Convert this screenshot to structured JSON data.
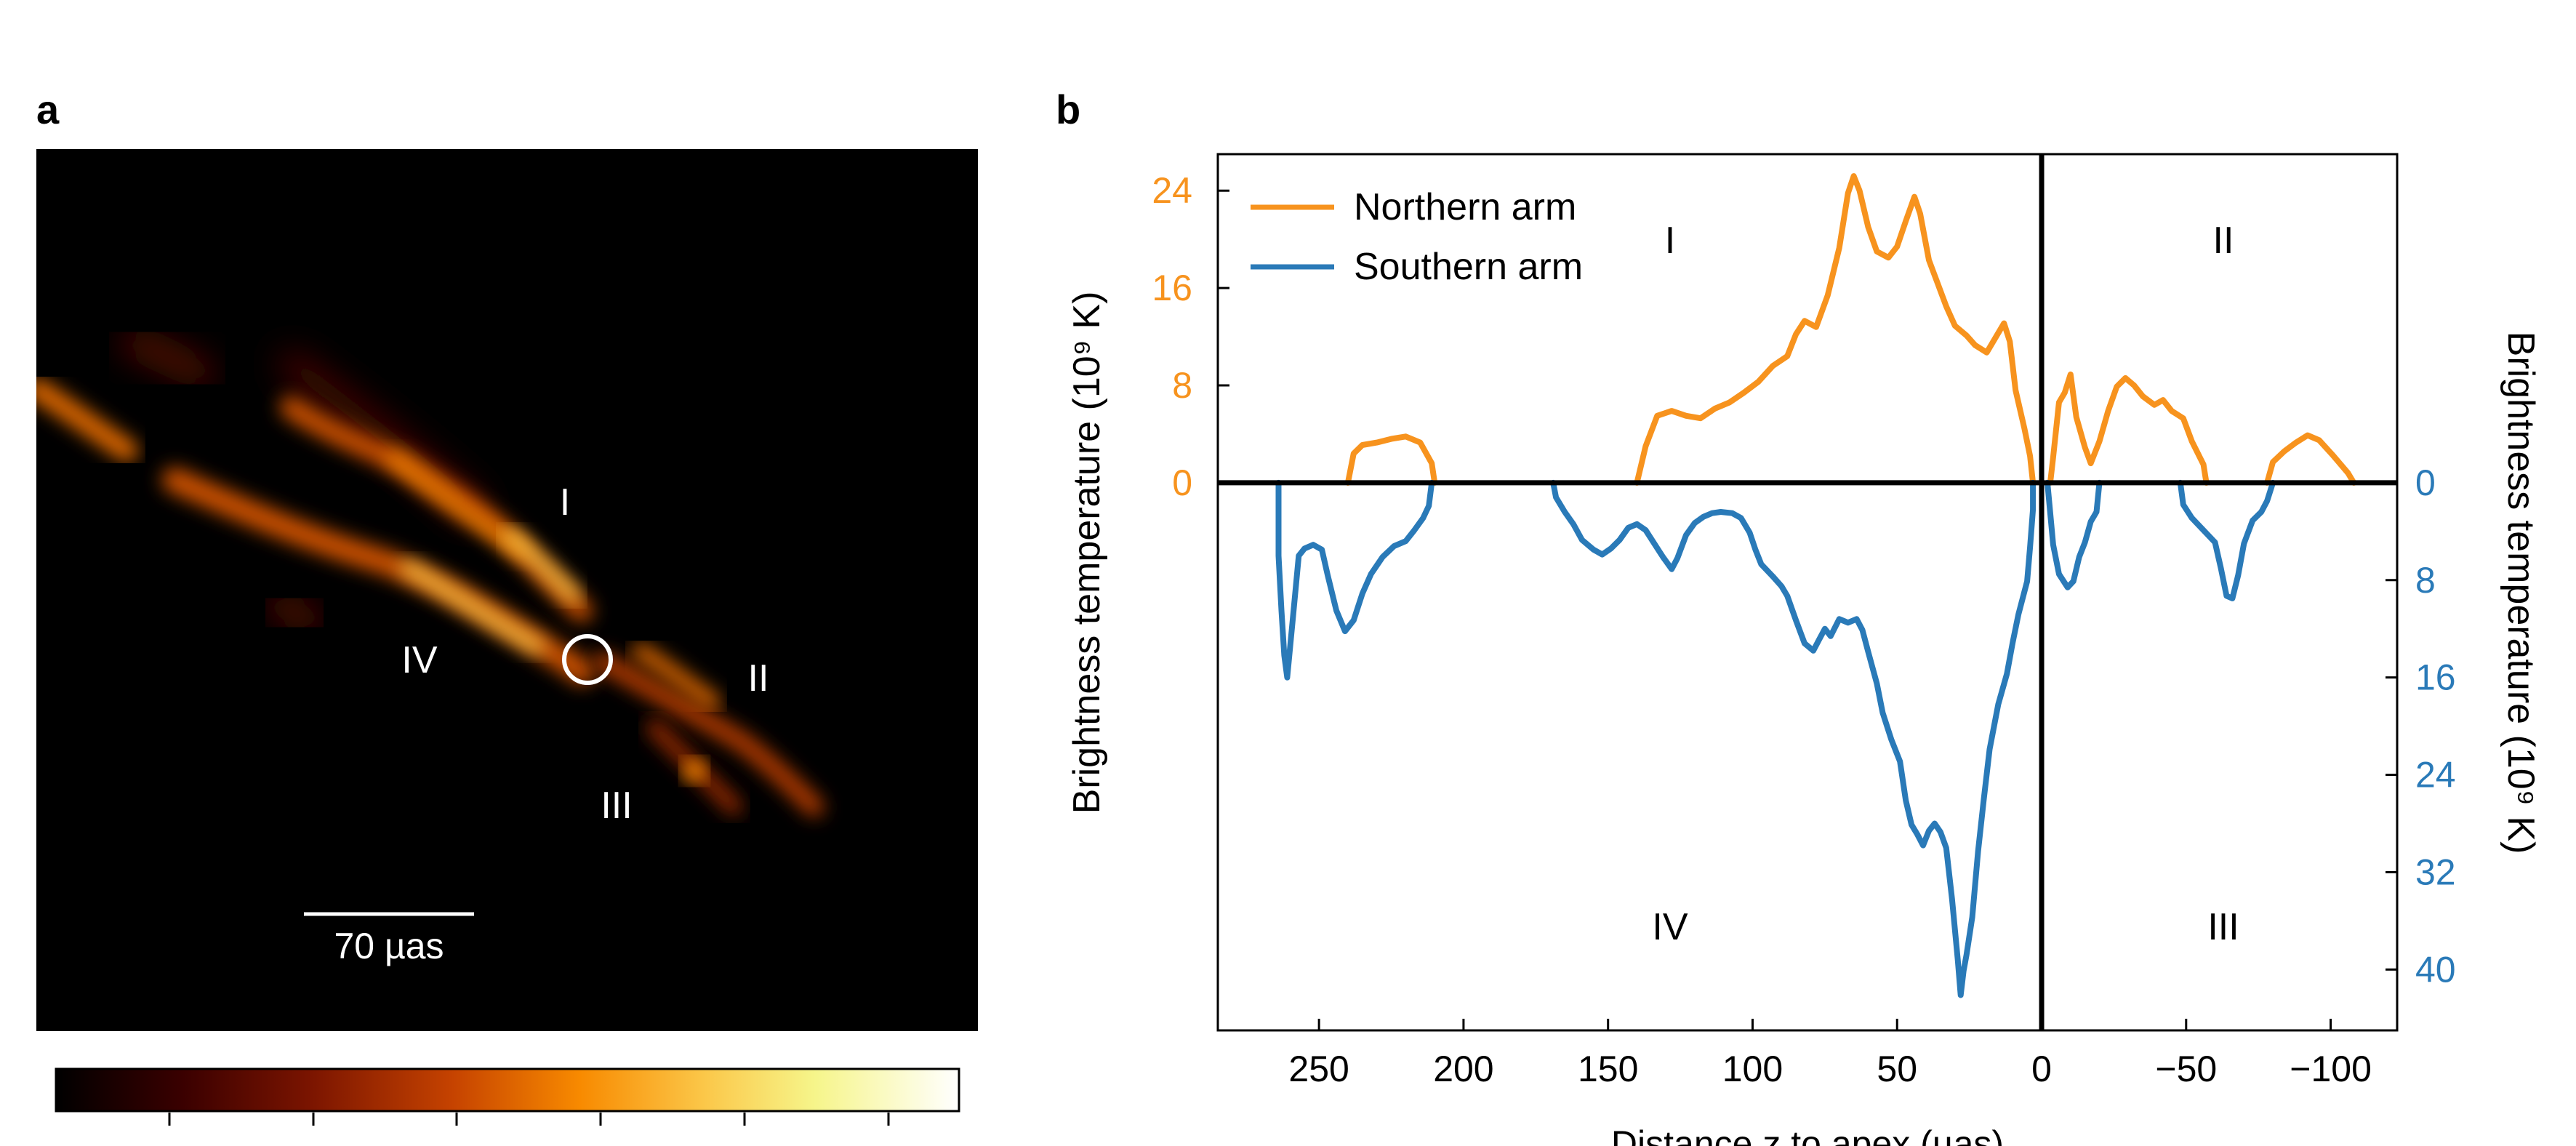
{
  "panel_a": {
    "label": "a",
    "region_labels": [
      "I",
      "II",
      "III",
      "IV"
    ],
    "scale_bar_label": "70 µas",
    "colormap": [
      "#000000",
      "#3a0000",
      "#7a1400",
      "#c64300",
      "#f88a00",
      "#fbc84a",
      "#f6f58a",
      "#ffffff"
    ]
  },
  "panel_b": {
    "label": "b",
    "region_labels": [
      "I",
      "II",
      "IV",
      "III"
    ]
  },
  "chart_data": {
    "type": "line",
    "xlabel": "Distance z to apex (µas)",
    "ylabel_left": "Brightness temperature (10⁹ K)",
    "ylabel_right": "Brightness temperature (10⁹ K)",
    "x_ticks": [
      "250",
      "200",
      "150",
      "100",
      "50",
      "0",
      "−50",
      "−100"
    ],
    "x_tick_values": [
      250,
      200,
      150,
      100,
      50,
      0,
      -50,
      -100
    ],
    "xlim": [
      285,
      -123
    ],
    "y_left_ticks": [
      "0",
      "8",
      "16",
      "24"
    ],
    "y_left_tick_values": [
      0,
      8,
      16,
      24
    ],
    "y_right_ticks": [
      "0",
      "8",
      "16",
      "24",
      "32",
      "40"
    ],
    "y_right_tick_values": [
      0,
      8,
      16,
      24,
      32,
      40
    ],
    "ylim": [
      -45,
      27
    ],
    "grid": false,
    "legend_position": "top-left",
    "colors": {
      "northern": "#f7931e",
      "southern": "#2a7ab8"
    },
    "series": [
      {
        "name": "Northern arm",
        "segments": [
          [
            [
              240,
              0
            ],
            [
              238,
              2.4
            ],
            [
              235,
              3.1
            ],
            [
              230,
              3.3
            ],
            [
              225,
              3.6
            ],
            [
              220,
              3.8
            ],
            [
              215,
              3.3
            ],
            [
              211,
              1.6
            ],
            [
              210,
              0
            ]
          ],
          [
            [
              140,
              0
            ],
            [
              137,
              3
            ],
            [
              133,
              5.5
            ],
            [
              128,
              5.9
            ],
            [
              123,
              5.5
            ],
            [
              118,
              5.3
            ],
            [
              113,
              6.1
            ],
            [
              108,
              6.6
            ],
            [
              103,
              7.4
            ],
            [
              98,
              8.3
            ],
            [
              93,
              9.6
            ],
            [
              88,
              10.4
            ],
            [
              85,
              12.2
            ],
            [
              82,
              13.3
            ],
            [
              78,
              12.8
            ],
            [
              74,
              15.4
            ],
            [
              70,
              19.3
            ],
            [
              67,
              23.8
            ],
            [
              65,
              25.2
            ],
            [
              63,
              24
            ],
            [
              60,
              21
            ],
            [
              57,
              19
            ],
            [
              53,
              18.5
            ],
            [
              50,
              19.4
            ],
            [
              47,
              21.5
            ],
            [
              44,
              23.5
            ],
            [
              42,
              22.1
            ],
            [
              39,
              18.3
            ],
            [
              36,
              16.4
            ],
            [
              33,
              14.5
            ],
            [
              30,
              12.9
            ],
            [
              26,
              12.1
            ],
            [
              23,
              11.3
            ],
            [
              19,
              10.7
            ],
            [
              16,
              11.9
            ],
            [
              13,
              13.1
            ],
            [
              11,
              11.6
            ],
            [
              9,
              7.6
            ],
            [
              6,
              4.5
            ],
            [
              4,
              2.2
            ],
            [
              3,
              0
            ]
          ],
          [
            [
              -3,
              0
            ],
            [
              -4,
              2.1
            ],
            [
              -6,
              6.6
            ],
            [
              -8,
              7.4
            ],
            [
              -10,
              8.9
            ],
            [
              -12,
              5.4
            ],
            [
              -15,
              2.9
            ],
            [
              -17,
              1.6
            ],
            [
              -20,
              3.4
            ],
            [
              -23,
              5.9
            ],
            [
              -26,
              7.9
            ],
            [
              -29,
              8.6
            ],
            [
              -32,
              8
            ],
            [
              -35,
              7.1
            ],
            [
              -39,
              6.4
            ],
            [
              -42,
              6.8
            ],
            [
              -45,
              5.9
            ],
            [
              -49,
              5.3
            ],
            [
              -52,
              3.4
            ],
            [
              -56,
              1.5
            ],
            [
              -57,
              0
            ]
          ],
          [
            [
              -78,
              0
            ],
            [
              -80,
              1.7
            ],
            [
              -84,
              2.6
            ],
            [
              -88,
              3.3
            ],
            [
              -92,
              3.9
            ],
            [
              -96,
              3.5
            ],
            [
              -101,
              2.2
            ],
            [
              -106,
              0.8
            ],
            [
              -108,
              0
            ]
          ]
        ]
      },
      {
        "name": "Southern arm",
        "segments": [
          [
            [
              264,
              0
            ],
            [
              264,
              -6
            ],
            [
              263,
              -10.5
            ],
            [
              262,
              -14.2
            ],
            [
              261,
              -16
            ],
            [
              259,
              -11
            ],
            [
              257,
              -6
            ],
            [
              255,
              -5.4
            ],
            [
              252,
              -5.1
            ],
            [
              249,
              -5.5
            ],
            [
              247,
              -7.6
            ],
            [
              244,
              -10.5
            ],
            [
              241,
              -12.2
            ],
            [
              238,
              -11.3
            ],
            [
              235,
              -9.1
            ],
            [
              232,
              -7.5
            ],
            [
              228,
              -6.1
            ],
            [
              224,
              -5.2
            ],
            [
              220,
              -4.8
            ],
            [
              217,
              -3.9
            ],
            [
              214,
              -2.9
            ],
            [
              212,
              -1.9
            ],
            [
              211,
              0
            ]
          ],
          [
            [
              169,
              0
            ],
            [
              168,
              -1.2
            ],
            [
              165,
              -2.4
            ],
            [
              162,
              -3.4
            ],
            [
              159,
              -4.7
            ],
            [
              155,
              -5.5
            ],
            [
              152,
              -5.9
            ],
            [
              149,
              -5.4
            ],
            [
              146,
              -4.7
            ],
            [
              143,
              -3.7
            ],
            [
              140,
              -3.4
            ],
            [
              137,
              -3.9
            ],
            [
              134,
              -5
            ],
            [
              131,
              -6.1
            ],
            [
              128,
              -7.1
            ],
            [
              126,
              -6.2
            ],
            [
              123,
              -4.3
            ],
            [
              120,
              -3.3
            ],
            [
              117,
              -2.8
            ],
            [
              114,
              -2.5
            ],
            [
              111,
              -2.4
            ],
            [
              107,
              -2.5
            ],
            [
              104,
              -2.9
            ],
            [
              101,
              -4.1
            ],
            [
              99,
              -5.5
            ],
            [
              97,
              -6.7
            ],
            [
              93,
              -7.7
            ],
            [
              90,
              -8.5
            ],
            [
              88,
              -9.3
            ],
            [
              85,
              -11.3
            ],
            [
              82,
              -13.2
            ],
            [
              79,
              -13.8
            ],
            [
              77,
              -12.9
            ],
            [
              75,
              -12
            ],
            [
              73,
              -12.6
            ],
            [
              70,
              -11.2
            ],
            [
              67,
              -11.5
            ],
            [
              64,
              -11.2
            ],
            [
              62,
              -12.1
            ],
            [
              60,
              -13.9
            ],
            [
              57,
              -16.5
            ],
            [
              55,
              -18.9
            ],
            [
              52,
              -21.1
            ],
            [
              49,
              -22.9
            ],
            [
              47,
              -26.1
            ],
            [
              45,
              -28.1
            ],
            [
              43,
              -28.9
            ],
            [
              41,
              -29.8
            ],
            [
              39,
              -28.6
            ],
            [
              37,
              -28
            ],
            [
              35,
              -28.7
            ],
            [
              33,
              -30
            ],
            [
              31,
              -34.2
            ],
            [
              29,
              -39.2
            ],
            [
              28,
              -42.1
            ],
            [
              27,
              -40.1
            ],
            [
              26,
              -38.8
            ],
            [
              24,
              -35.7
            ],
            [
              22,
              -30.3
            ],
            [
              20,
              -26
            ],
            [
              18,
              -21.9
            ],
            [
              15,
              -18.2
            ],
            [
              12,
              -15.7
            ],
            [
              10,
              -13.1
            ],
            [
              8,
              -10.8
            ],
            [
              5,
              -8.1
            ],
            [
              4,
              -5.3
            ],
            [
              3,
              -2.2
            ],
            [
              3,
              0
            ]
          ],
          [
            [
              -2,
              0
            ],
            [
              -3,
              -2.5
            ],
            [
              -4,
              -5.1
            ],
            [
              -6,
              -7.5
            ],
            [
              -9,
              -8.6
            ],
            [
              -11,
              -8.1
            ],
            [
              -13,
              -6.1
            ],
            [
              -15,
              -4.9
            ],
            [
              -17,
              -3.2
            ],
            [
              -19,
              -2.4
            ],
            [
              -20,
              0
            ]
          ],
          [
            [
              -48,
              0
            ],
            [
              -49,
              -1.8
            ],
            [
              -52,
              -2.9
            ],
            [
              -56,
              -3.9
            ],
            [
              -60,
              -4.9
            ],
            [
              -62,
              -7
            ],
            [
              -64,
              -9.3
            ],
            [
              -66,
              -9.5
            ],
            [
              -68,
              -7.6
            ],
            [
              -70,
              -5
            ],
            [
              -73,
              -3.1
            ],
            [
              -76,
              -2.4
            ],
            [
              -78,
              -1.5
            ],
            [
              -80,
              0
            ]
          ]
        ]
      }
    ]
  }
}
